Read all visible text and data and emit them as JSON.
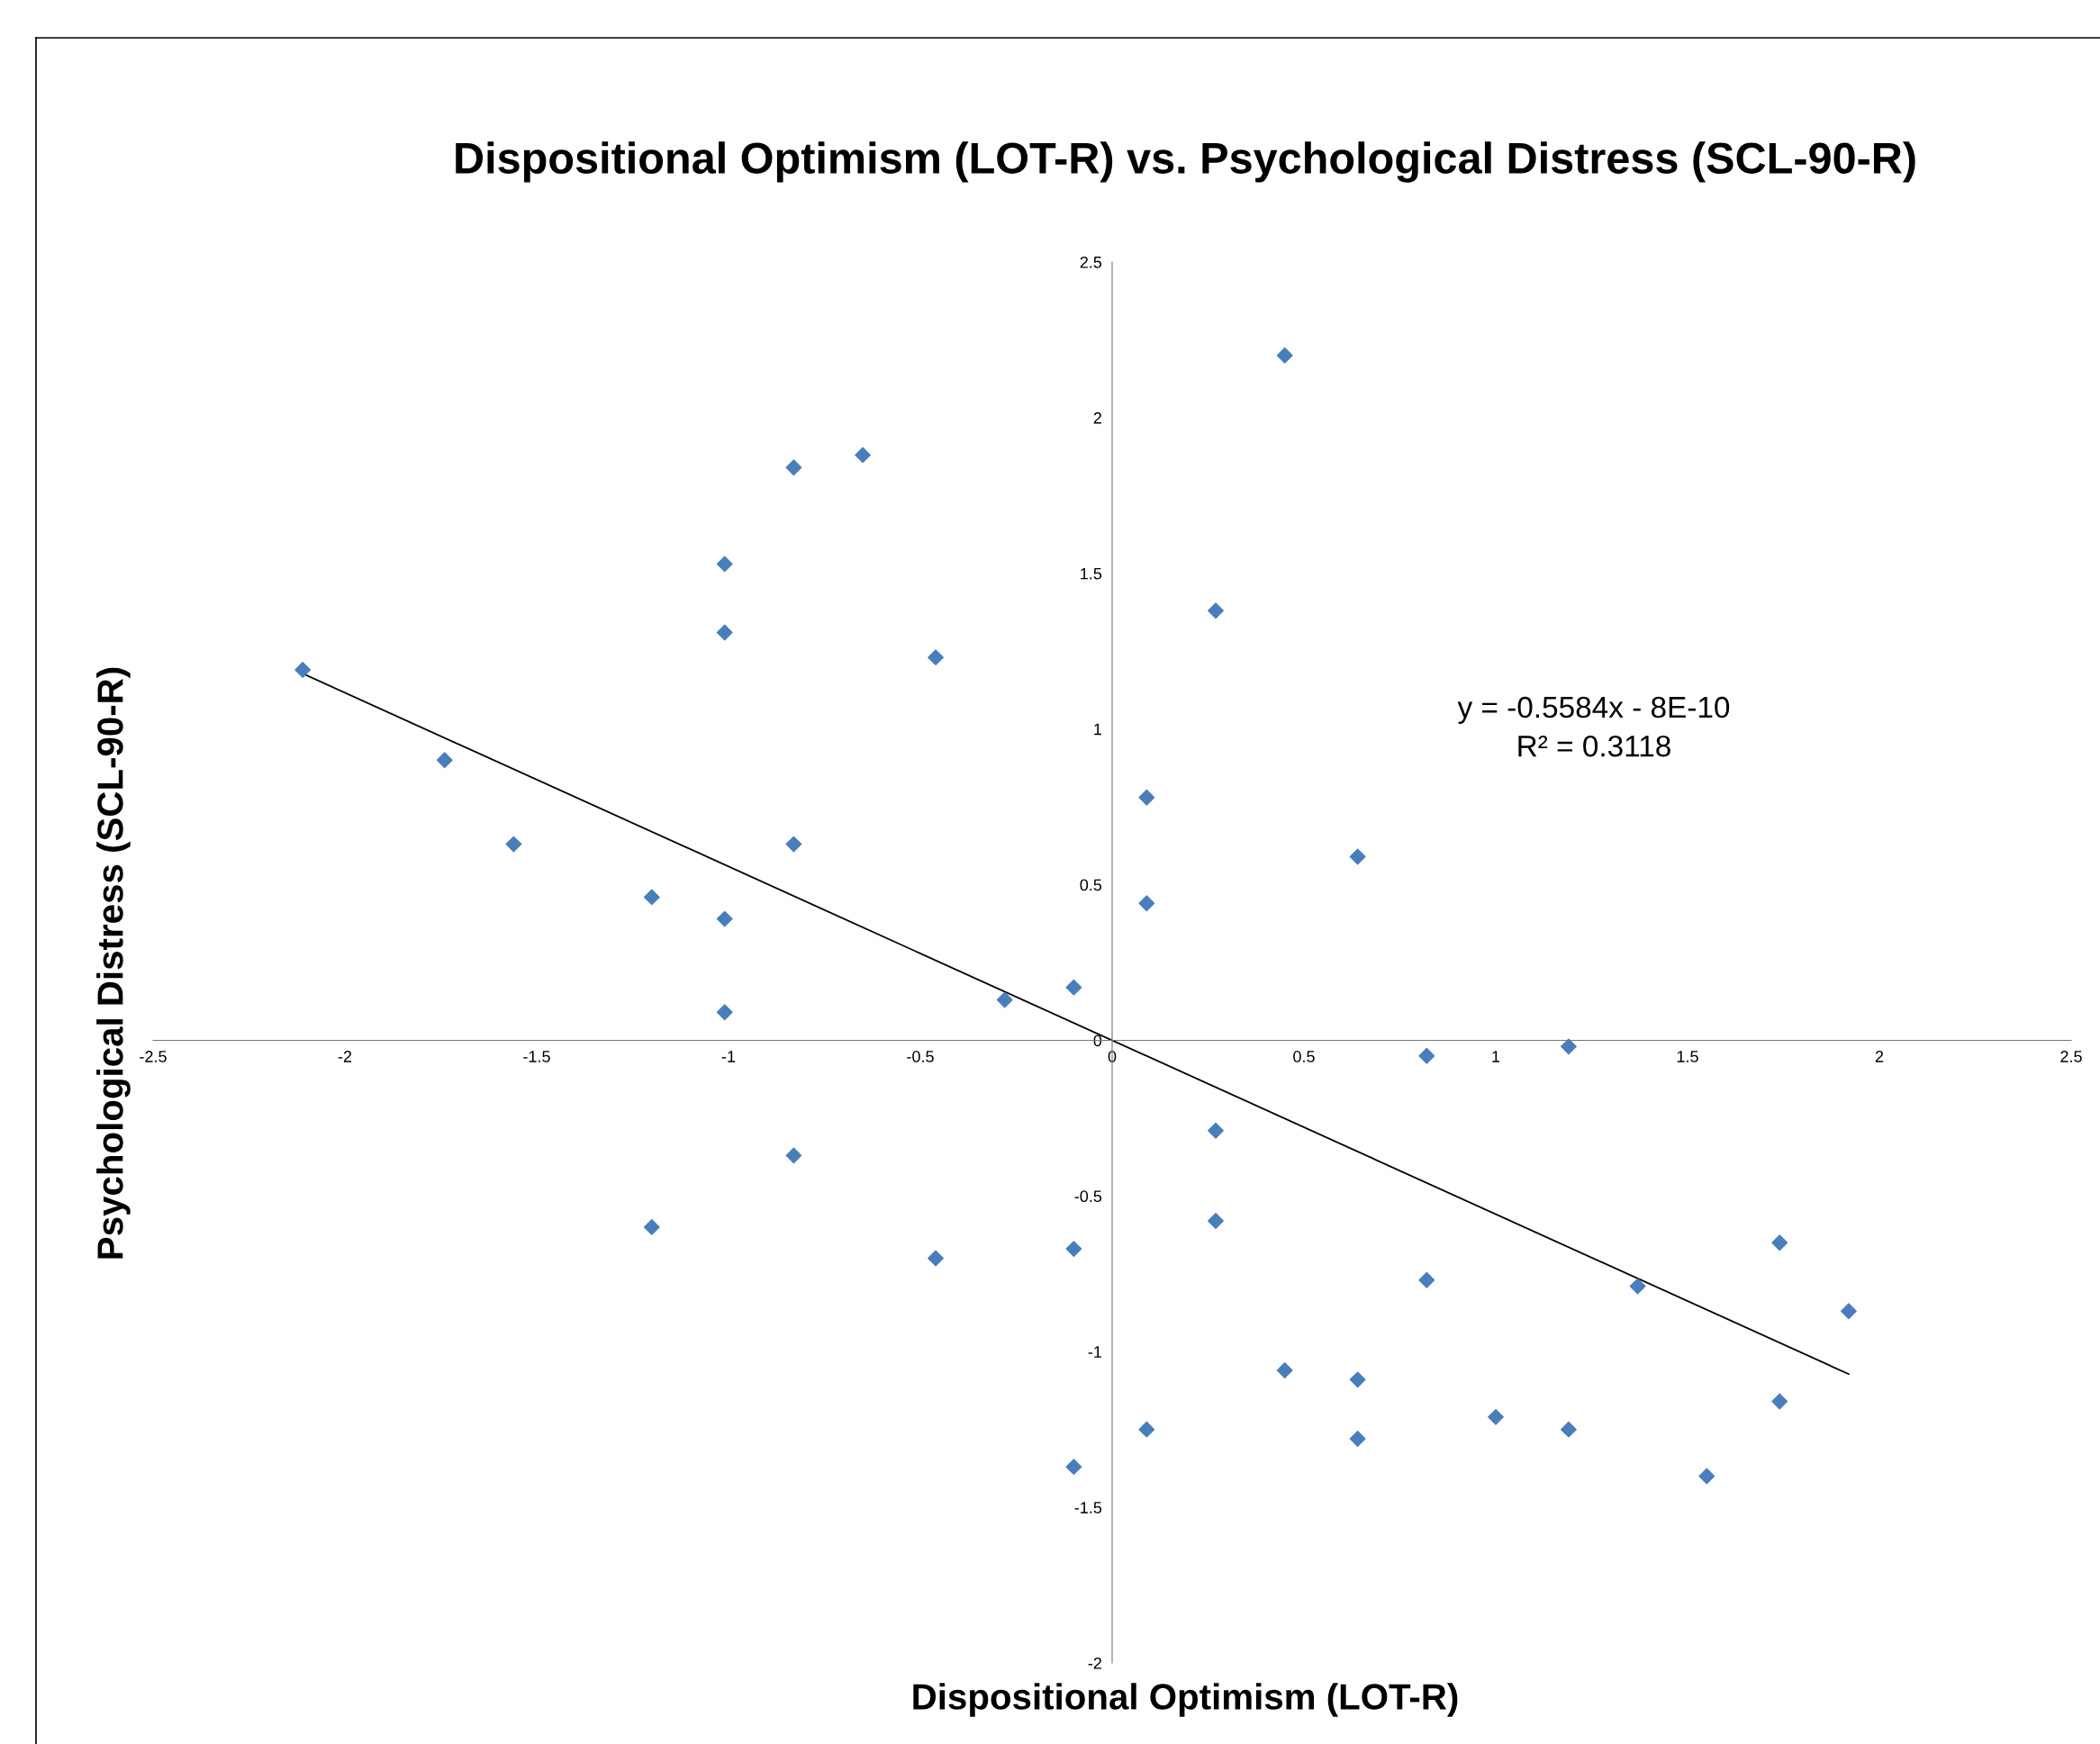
{
  "chart_data": {
    "type": "scatter",
    "title": "Dispositional Optimism (LOT-R) vs. Psychological Distress (SCL-90-R)",
    "xlabel": "Dispositional Optimism (LOT-R)",
    "ylabel": "Psychological Distress (SCL-90-R)",
    "x": [
      -2.11,
      -1.74,
      -1.56,
      -1.2,
      -1.2,
      -1.01,
      -1.01,
      -1.01,
      -1.01,
      -0.83,
      -0.83,
      -0.83,
      -0.65,
      -0.46,
      -0.46,
      -0.28,
      -0.1,
      -0.1,
      -0.1,
      0.09,
      0.09,
      0.09,
      0.27,
      0.27,
      0.27,
      0.45,
      0.45,
      0.64,
      0.64,
      0.64,
      0.82,
      0.82,
      1.0,
      1.19,
      1.19,
      1.37,
      1.55,
      1.74,
      1.74,
      1.92
    ],
    "series": [
      {
        "color": "#4a7ebb",
        "marker": "diamond",
        "values": [
          1.19,
          0.9,
          0.63,
          0.46,
          -0.6,
          1.53,
          1.31,
          0.39,
          0.09,
          1.84,
          0.63,
          -0.37,
          1.88,
          1.23,
          -0.7,
          0.13,
          0.17,
          -0.67,
          -1.37,
          0.78,
          0.44,
          -1.25,
          1.38,
          -0.29,
          -0.58,
          2.2,
          -1.06,
          0.59,
          -1.09,
          -1.28,
          -0.05,
          -0.77,
          -1.21,
          -0.02,
          -1.25,
          -0.79,
          -1.4,
          -0.65,
          -1.16,
          -0.87
        ]
      },
      {
        "type": "line",
        "color": "#000000",
        "marker": "none",
        "x": [
          -2.11,
          1.92
        ],
        "values": [
          1.178,
          -1.072
        ]
      }
    ],
    "annotations": [
      "y = -0.5584x - 8E-10\nR² = 0.3118"
    ],
    "xlim": [
      -2.5,
      2.5
    ],
    "xticks": [
      -2.5,
      -2,
      -1.5,
      -1,
      -0.5,
      0,
      0.5,
      1,
      1.5,
      2,
      2.5
    ],
    "ylim": [
      -2,
      2.5
    ],
    "yticks": [
      -2,
      -1.5,
      -1,
      -0.5,
      0,
      0.5,
      1,
      1.5,
      2,
      2.5
    ],
    "grid": false,
    "legend": false
  }
}
